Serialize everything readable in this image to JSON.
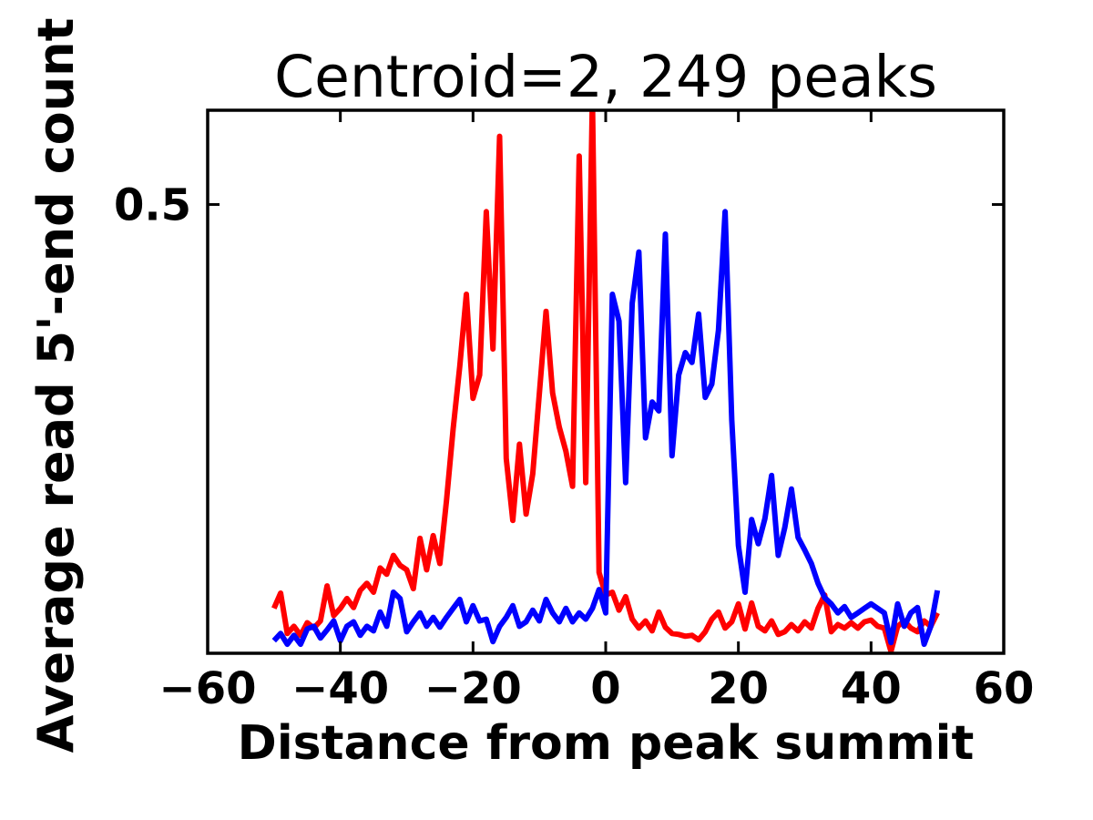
{
  "chart_data": {
    "type": "line",
    "title": "Centroid=2, 249 peaks",
    "xlabel": "Distance from peak summit",
    "ylabel": "Average read 5'-end count",
    "xlim": [
      -60,
      60
    ],
    "ylim": [
      0,
      0.605
    ],
    "grid": false,
    "legend": null,
    "xticks": {
      "values": [
        -60,
        -40,
        -20,
        0,
        20,
        40,
        60
      ],
      "labels": [
        "−60",
        "−40",
        "−20",
        "0",
        "20",
        "40",
        "60"
      ]
    },
    "yticks": {
      "values": [
        0,
        0.5
      ],
      "labels": [
        "",
        "0.5"
      ]
    },
    "x": [
      -50,
      -49,
      -48,
      -47,
      -46,
      -45,
      -44,
      -43,
      -42,
      -41,
      -40,
      -39,
      -38,
      -37,
      -36,
      -35,
      -34,
      -33,
      -32,
      -31,
      -30,
      -29,
      -28,
      -27,
      -26,
      -25,
      -24,
      -23,
      -22,
      -21,
      -20,
      -19,
      -18,
      -17,
      -16,
      -15,
      -14,
      -13,
      -12,
      -11,
      -10,
      -9,
      -8,
      -7,
      -6,
      -5,
      -4,
      -3,
      -2,
      -1,
      0,
      1,
      2,
      3,
      4,
      5,
      6,
      7,
      8,
      9,
      10,
      11,
      12,
      13,
      14,
      15,
      16,
      17,
      18,
      19,
      20,
      21,
      22,
      23,
      24,
      25,
      26,
      27,
      28,
      29,
      30,
      31,
      32,
      33,
      34,
      35,
      36,
      37,
      38,
      39,
      40,
      41,
      42,
      43,
      44,
      45,
      46,
      47,
      48,
      49,
      50
    ],
    "series": [
      {
        "name": "red-line",
        "color": "#ff0000",
        "values": [
          0.05,
          0.067,
          0.022,
          0.03,
          0.02,
          0.034,
          0.028,
          0.036,
          0.075,
          0.042,
          0.05,
          0.061,
          0.051,
          0.07,
          0.078,
          0.068,
          0.095,
          0.088,
          0.109,
          0.098,
          0.093,
          0.072,
          0.128,
          0.093,
          0.131,
          0.1,
          0.17,
          0.25,
          0.32,
          0.4,
          0.284,
          0.31,
          0.492,
          0.339,
          0.576,
          0.217,
          0.148,
          0.233,
          0.155,
          0.2,
          0.29,
          0.381,
          0.29,
          0.252,
          0.225,
          0.186,
          0.554,
          0.19,
          0.62,
          0.09,
          0.065,
          0.068,
          0.048,
          0.063,
          0.038,
          0.028,
          0.036,
          0.025,
          0.046,
          0.029,
          0.022,
          0.021,
          0.019,
          0.02,
          0.015,
          0.024,
          0.038,
          0.046,
          0.028,
          0.035,
          0.055,
          0.027,
          0.056,
          0.03,
          0.025,
          0.036,
          0.021,
          0.024,
          0.032,
          0.025,
          0.035,
          0.028,
          0.05,
          0.065,
          0.024,
          0.032,
          0.028,
          0.034,
          0.028,
          0.035,
          0.037,
          0.03,
          0.028,
          0.002,
          0.03,
          0.036,
          0.028,
          0.024,
          0.036,
          0.03,
          0.045
        ]
      },
      {
        "name": "blue-line",
        "color": "#0000ff",
        "values": [
          0.014,
          0.022,
          0.01,
          0.02,
          0.01,
          0.027,
          0.03,
          0.017,
          0.026,
          0.036,
          0.014,
          0.03,
          0.035,
          0.02,
          0.03,
          0.025,
          0.046,
          0.03,
          0.068,
          0.061,
          0.024,
          0.035,
          0.045,
          0.03,
          0.04,
          0.029,
          0.04,
          0.05,
          0.06,
          0.035,
          0.053,
          0.036,
          0.038,
          0.013,
          0.03,
          0.04,
          0.053,
          0.03,
          0.035,
          0.048,
          0.036,
          0.06,
          0.045,
          0.035,
          0.05,
          0.035,
          0.045,
          0.038,
          0.05,
          0.071,
          0.045,
          0.4,
          0.37,
          0.19,
          0.39,
          0.447,
          0.24,
          0.28,
          0.27,
          0.467,
          0.22,
          0.31,
          0.335,
          0.324,
          0.378,
          0.285,
          0.3,
          0.36,
          0.492,
          0.26,
          0.12,
          0.068,
          0.149,
          0.122,
          0.15,
          0.198,
          0.109,
          0.14,
          0.183,
          0.129,
          0.115,
          0.1,
          0.078,
          0.062,
          0.055,
          0.045,
          0.052,
          0.04,
          0.045,
          0.05,
          0.055,
          0.05,
          0.045,
          0.012,
          0.055,
          0.03,
          0.045,
          0.051,
          0.01,
          0.03,
          0.07
        ]
      }
    ]
  }
}
